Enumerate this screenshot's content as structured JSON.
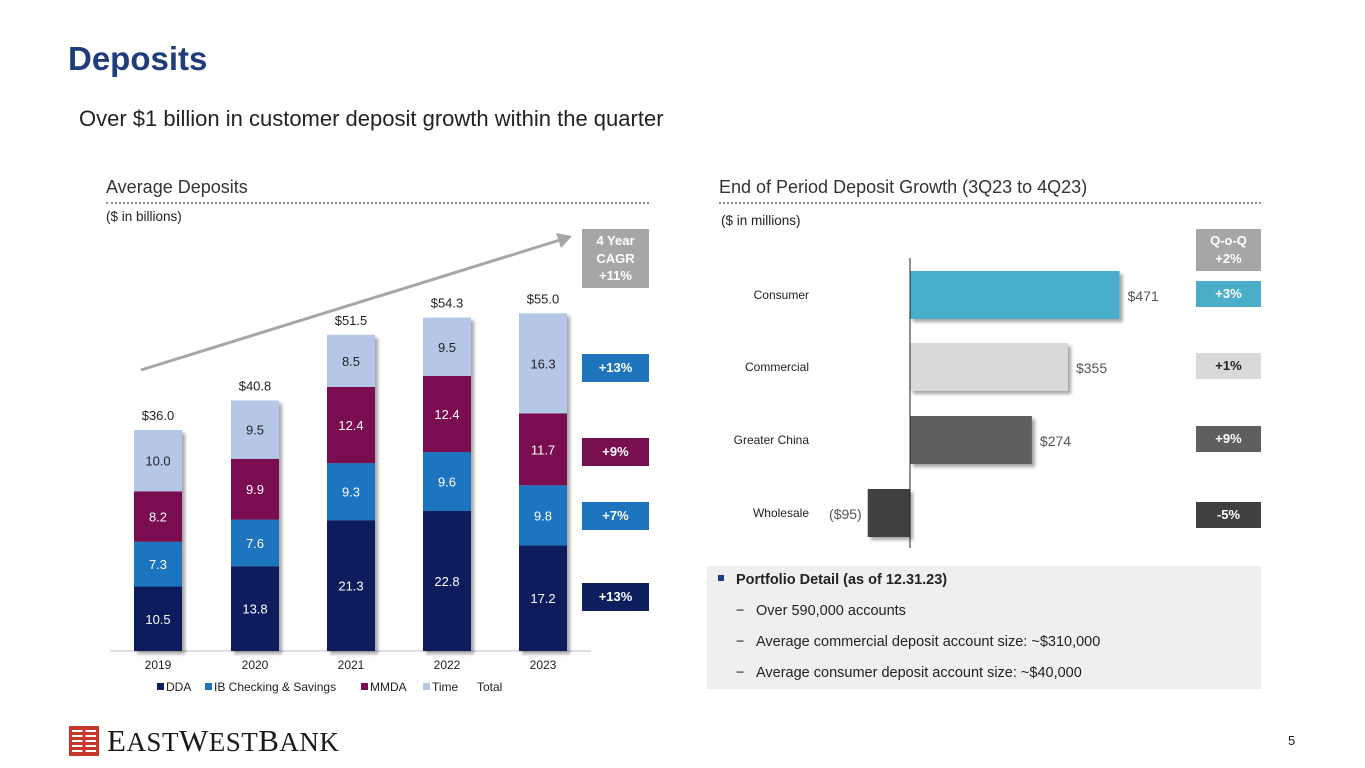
{
  "page": {
    "title": "Deposits",
    "subtitle": "Over $1 billion in customer deposit growth within the quarter",
    "page_number": "5"
  },
  "left_section": {
    "heading": "Average Deposits",
    "units": "($ in billions)"
  },
  "right_section": {
    "heading": "End of Period Deposit Growth (3Q23 to 4Q23)",
    "units": "($ in millions)"
  },
  "cagr": {
    "header": [
      "4 Year",
      "CAGR",
      "+11%"
    ],
    "rows": [
      {
        "label": "+13%",
        "color": "#1f74be"
      },
      {
        "label": "+9%",
        "color": "#7a0f4f"
      },
      {
        "label": "+7%",
        "color": "#1f74be"
      },
      {
        "label": "+13%",
        "color": "#0d1f5c"
      }
    ]
  },
  "qoq": {
    "header": [
      "Q-o-Q",
      "+2%"
    ],
    "rows": [
      {
        "label": "+3%",
        "color": "#4aaec9",
        "text_color": "#ffffff"
      },
      {
        "label": "+1%",
        "color": "#d9d9d9",
        "text_color": "#222222"
      },
      {
        "label": "+9%",
        "color": "#5f5f5f",
        "text_color": "#ffffff"
      },
      {
        "label": "-5%",
        "color": "#404040",
        "text_color": "#ffffff"
      }
    ]
  },
  "portfolio": {
    "heading": "Portfolio Detail (as of 12.31.23)",
    "items": [
      "Over 590,000 accounts",
      "Average commercial deposit account size: ~$310,000",
      "Average consumer deposit account size: ~$40,000"
    ]
  },
  "logo": {
    "text": "EASTWESTBANK",
    "icon": "east-west-bank-logo-icon",
    "color": "#c8352b"
  },
  "chart_data": [
    {
      "type": "bar",
      "stacked": true,
      "categories": [
        "2019",
        "2020",
        "2021",
        "2022",
        "2023"
      ],
      "series": [
        {
          "name": "DDA",
          "color": "#0d1f5c",
          "values": [
            10.5,
            13.8,
            21.3,
            22.8,
            17.2
          ]
        },
        {
          "name": "IB Checking & Savings",
          "color": "#1f74be",
          "values": [
            7.3,
            7.6,
            9.3,
            9.6,
            9.8
          ]
        },
        {
          "name": "MMDA",
          "color": "#7a0f4f",
          "values": [
            8.2,
            9.9,
            12.4,
            12.4,
            11.7
          ]
        },
        {
          "name": "Time",
          "color": "#b4c7e7",
          "values": [
            10.0,
            9.5,
            8.5,
            9.5,
            16.3
          ]
        }
      ],
      "totals": [
        36.0,
        40.8,
        51.5,
        54.3,
        55.0
      ],
      "total_labels": [
        "$36.0",
        "$40.8",
        "$51.5",
        "$54.3",
        "$55.0"
      ],
      "legend": [
        "DDA",
        "IB Checking & Savings",
        "MMDA",
        "Time",
        "Total"
      ],
      "legend_position": "bottom",
      "ylim": [
        0,
        60
      ]
    },
    {
      "type": "bar",
      "orientation": "horizontal",
      "categories": [
        "Consumer",
        "Commercial",
        "Greater China",
        "Wholesale"
      ],
      "values": [
        471,
        355,
        274,
        -95
      ],
      "labels": [
        "$471",
        "$355",
        "$274",
        "($95)"
      ],
      "colors": [
        "#4aaec9",
        "#d9d9d9",
        "#5f5f5f",
        "#404040"
      ],
      "xlim": [
        -150,
        550
      ]
    }
  ]
}
